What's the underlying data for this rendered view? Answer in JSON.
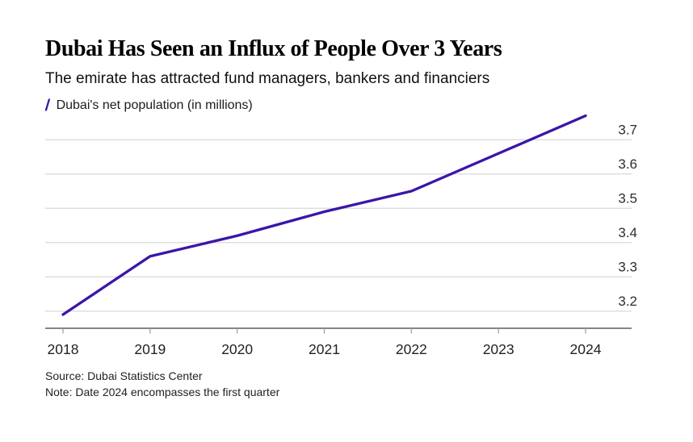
{
  "header": {
    "title": "Dubai Has Seen an Influx of People Over 3 Years",
    "subtitle": "The emirate has attracted fund managers, bankers and financiers"
  },
  "legend": {
    "slash": "/",
    "label": "Dubai's net population (in millions)"
  },
  "chart_data": {
    "type": "line",
    "title": "Dubai's net population (in millions)",
    "x": [
      2018,
      2019,
      2020,
      2021,
      2022,
      2023,
      2024
    ],
    "x_tick_labels": [
      "2018",
      "2019",
      "2020",
      "2021",
      "2022",
      "2023",
      "2024"
    ],
    "series": [
      {
        "name": "Dubai net population (millions)",
        "values": [
          3.19,
          3.36,
          3.42,
          3.49,
          3.55,
          3.66,
          3.77
        ]
      }
    ],
    "y_ticks": [
      3.2,
      3.3,
      3.4,
      3.5,
      3.6,
      3.7
    ],
    "y_tick_labels": [
      "3.2",
      "3.3",
      "3.4",
      "3.5",
      "3.6",
      "3.7"
    ],
    "ylim": [
      3.15,
      3.78
    ],
    "xlabel": "",
    "ylabel": "net population (millions)",
    "grid": "horizontal",
    "legend_position": "top-left",
    "line_color": "#3b16a8"
  },
  "footer": {
    "source": "Source: Dubai Statistics Center",
    "note": "Note: Date 2024 encompasses the first quarter"
  },
  "colors": {
    "accent": "#3b16a8",
    "gridline": "#d9d9d9",
    "axis_line": "#3d3d3d",
    "tick_mark": "#9b9b9b",
    "axis_label": "#2e2e2e",
    "background": "#ffffff"
  }
}
